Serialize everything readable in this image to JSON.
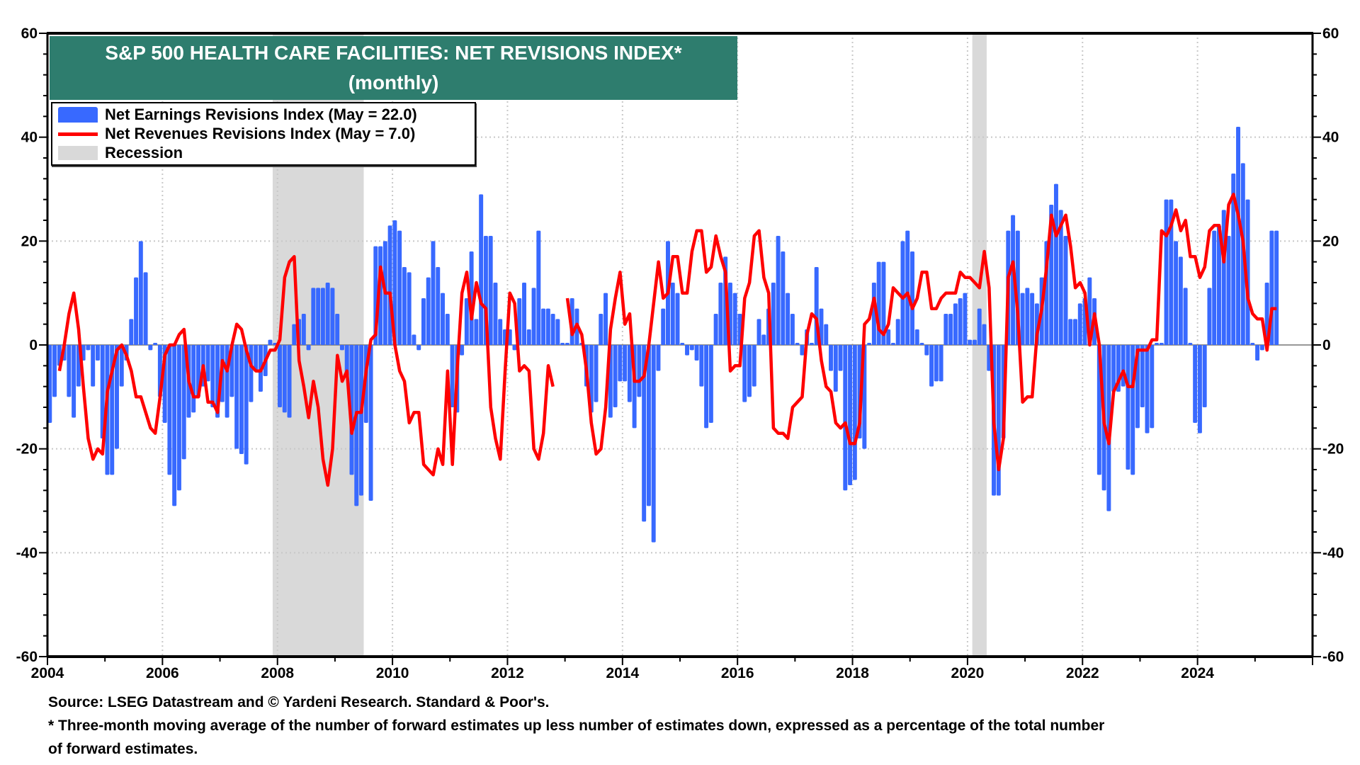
{
  "title_line1": "S&P 500 HEALTH CARE FACILITIES: NET REVISIONS INDEX*",
  "title_line2": "(monthly)",
  "legend": {
    "earnings": "Net Earnings Revisions Index (May  = 22.0)",
    "revenues": "Net Revenues Revisions Index (May  = 7.0)",
    "recession": "Recession"
  },
  "source": "Source: LSEG Datastream and © Yardeni Research. Standard & Poor's.",
  "footnote_line1": "* Three-month moving average of the number of forward estimates up less number of estimates down, expressed as a percentage of the total number",
  "footnote_line2": " of forward estimates.",
  "colors": {
    "earnings": "#3869ff",
    "revenues": "#ff0000",
    "recession": "#d9d9d9",
    "title_bg": "#2e7d6e"
  },
  "chart_data": {
    "type": "bar+line",
    "frequency": "monthly",
    "start": "2004-01",
    "ylim": [
      -60,
      60
    ],
    "y_ticks": [
      "60",
      "40",
      "20",
      "0",
      "-20",
      "-40",
      "-60"
    ],
    "y_tick_values": [
      60,
      40,
      20,
      0,
      -20,
      -40,
      -60
    ],
    "x_ticks": [
      "2004",
      "2006",
      "2008",
      "2010",
      "2012",
      "2014",
      "2016",
      "2018",
      "2020",
      "2022",
      "2024"
    ],
    "xlim": [
      "2004-01",
      "2026-01"
    ],
    "grid": true,
    "legend_placement": "top-left",
    "recessions": [
      [
        "2007-12",
        "2009-06"
      ],
      [
        "2020-02",
        "2020-04"
      ]
    ],
    "series": [
      {
        "name": "Net Earnings Revisions Index",
        "type": "bar",
        "values": [
          -15,
          -10,
          -4,
          -3,
          -10,
          -14,
          -8,
          -3,
          -1,
          -8,
          -3,
          -18,
          -25,
          -25,
          -20,
          -8,
          -3,
          5,
          13,
          20,
          14,
          -1,
          0,
          -10,
          -15,
          -25,
          -31,
          -28,
          -22,
          -14,
          -13,
          -10,
          -8,
          -7,
          -12,
          -14,
          -11,
          -14,
          -10,
          -20,
          -21,
          -23,
          -11,
          -5,
          -9,
          -6,
          1,
          0,
          -12,
          -13,
          -14,
          4,
          5,
          6,
          -1,
          11,
          11,
          11,
          12,
          11,
          6,
          -1,
          -6,
          -25,
          -31,
          -29,
          -15,
          -30,
          19,
          19,
          20,
          23,
          24,
          22,
          15,
          14,
          2,
          -1,
          9,
          13,
          20,
          15,
          10,
          6,
          -12,
          -13,
          -2,
          9,
          18,
          5,
          29,
          21,
          21,
          12,
          5,
          3,
          3,
          -1,
          9,
          12,
          3,
          11,
          22,
          7,
          7,
          6,
          5,
          0,
          0,
          9,
          7,
          0,
          -8,
          -13,
          -11,
          6,
          10,
          -14,
          -12,
          -7,
          -7,
          -11,
          -16,
          -10,
          -34,
          -31,
          -38,
          -5,
          7,
          20,
          12,
          10,
          0,
          -2,
          -1,
          -3,
          -8,
          -16,
          -15,
          6,
          12,
          17,
          12,
          10,
          6,
          -11,
          -10,
          -8,
          5,
          2,
          7,
          12,
          21,
          18,
          10,
          6,
          0,
          -2,
          3,
          0,
          15,
          7,
          4,
          -5,
          -9,
          -5,
          -28,
          -27,
          -26,
          -18,
          -20,
          0,
          12,
          16,
          16,
          3,
          0,
          5,
          20,
          22,
          18,
          3,
          0,
          -2,
          -8,
          -7,
          -7,
          6,
          6,
          8,
          9,
          10,
          1,
          1,
          7,
          4,
          -5,
          -29,
          -29,
          -18,
          22,
          25,
          22,
          10,
          11,
          10,
          8,
          13,
          20,
          27,
          31,
          26,
          21,
          5,
          5,
          8,
          9,
          13,
          9,
          -25,
          -28,
          -32,
          -9,
          -9,
          -8,
          -24,
          -25,
          -16,
          -12,
          -17,
          -16,
          0,
          0,
          28,
          28,
          20,
          17,
          11,
          0,
          -15,
          -17,
          -12,
          11,
          22,
          23,
          26,
          21,
          33,
          42,
          35,
          28,
          0,
          -3,
          -1,
          12,
          22,
          22
        ]
      },
      {
        "name": "Net Revenues Revisions Index",
        "type": "line",
        "values": [
          null,
          null,
          -5,
          0,
          6,
          10,
          3,
          -8,
          -18,
          -22,
          -20,
          -21,
          -9,
          -5,
          -1,
          0,
          -2,
          -5,
          -10,
          -10,
          -13,
          -16,
          -17,
          -10,
          -2,
          0,
          0,
          2,
          3,
          -7,
          -10,
          -10,
          -4,
          -11,
          -11,
          -13,
          -3,
          -5,
          0,
          4,
          3,
          -1,
          -4,
          -5,
          -5,
          -3,
          -1,
          -1,
          1,
          13,
          16,
          17,
          -3,
          -8,
          -14,
          -7,
          -12,
          -22,
          -27,
          -20,
          -2,
          -7,
          -5,
          -17,
          -13,
          -13,
          -5,
          1,
          2,
          15,
          10,
          10,
          0,
          -5,
          -7,
          -15,
          -13,
          -13,
          -23,
          -24,
          -25,
          -20,
          -23,
          -5,
          -23,
          -5,
          10,
          14,
          5,
          12,
          8,
          7,
          -12,
          -18,
          -22,
          -5,
          10,
          8,
          -5,
          -4,
          -5,
          -20,
          -22,
          -17,
          -4,
          -8,
          null,
          null,
          9,
          2,
          4,
          2,
          -5,
          -15,
          -21,
          -20,
          -12,
          3,
          9,
          14,
          4,
          6,
          -7,
          -7,
          -6,
          0,
          8,
          16,
          9,
          10,
          17,
          17,
          10,
          10,
          18,
          22,
          22,
          14,
          15,
          21,
          17,
          14,
          -5,
          -4,
          -4,
          9,
          12,
          21,
          22,
          13,
          10,
          -16,
          -17,
          -17,
          -18,
          -12,
          -11,
          -10,
          2,
          6,
          5,
          -3,
          -8,
          -9,
          -15,
          -16,
          -15,
          -19,
          -19,
          -15,
          4,
          5,
          9,
          3,
          2,
          4,
          11,
          10,
          9,
          10,
          7,
          9,
          14,
          14,
          7,
          7,
          9,
          10,
          10,
          10,
          14,
          13,
          13,
          12,
          11,
          18,
          11,
          -15,
          -24,
          -18,
          13,
          16,
          6,
          -11,
          -10,
          -10,
          2,
          7,
          15,
          25,
          21,
          23,
          25,
          19,
          11,
          12,
          10,
          0,
          6,
          0,
          -15,
          -19,
          -9,
          -7,
          -5,
          -8,
          -8,
          -1,
          -1,
          -1,
          1,
          1,
          22,
          21,
          23,
          26,
          22,
          24,
          17,
          17,
          13,
          15,
          22,
          23,
          23,
          16,
          27,
          29,
          25,
          20,
          9,
          6,
          5,
          5,
          -1,
          7,
          7
        ]
      }
    ]
  }
}
